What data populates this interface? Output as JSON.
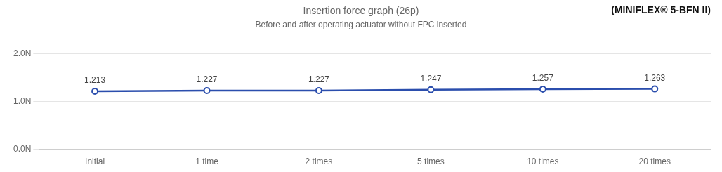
{
  "chart_data": {
    "type": "line",
    "title": "Insertion force graph (26p)",
    "subtitle": "Before and after operating actuator without FPC inserted",
    "annotations": [
      "(MINIFLEX® 5-BFN II)"
    ],
    "categories": [
      "Initial",
      "1 time",
      "2 times",
      "5 times",
      "10 times",
      "20 times"
    ],
    "values": [
      1.213,
      1.227,
      1.227,
      1.247,
      1.257,
      1.263
    ],
    "color": "#2B4EAD",
    "marker": "circle",
    "ylim": [
      0.0,
      2.4
    ],
    "yticks": [
      {
        "value": 2.0,
        "label": "2.0N"
      },
      {
        "value": 1.0,
        "label": "1.0N"
      },
      {
        "value": 0.0,
        "label": "0.0N"
      }
    ],
    "grid": true,
    "data_labels": true
  }
}
